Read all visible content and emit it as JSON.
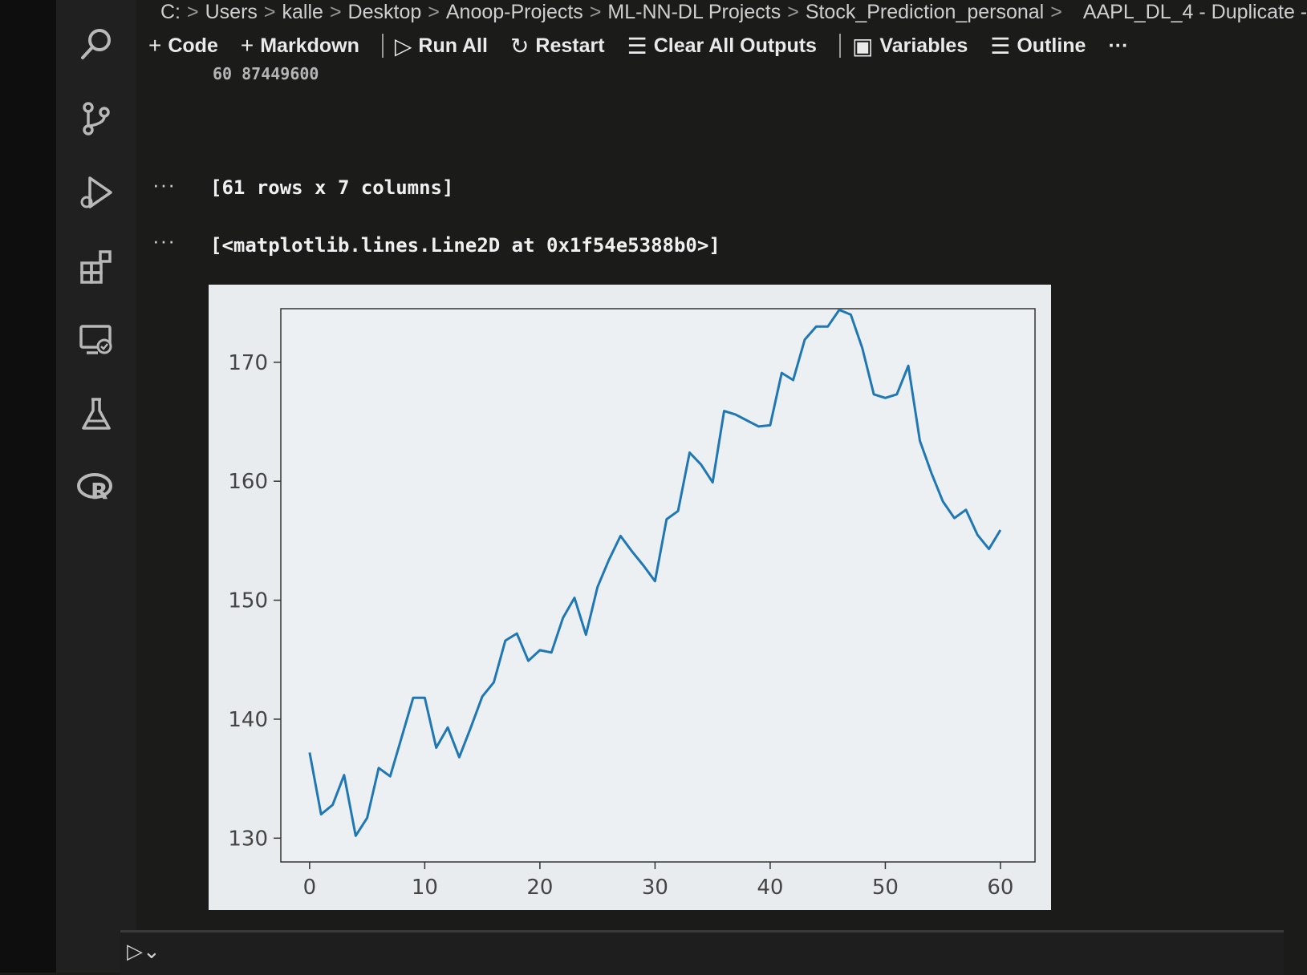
{
  "breadcrumb": {
    "items": [
      "C:",
      "Users",
      "kalle",
      "Desktop",
      "Anoop-Projects",
      "ML-NN-DL Projects",
      "Stock_Prediction_personal",
      "AAPL_DL_4 - Duplicate -"
    ],
    "separator": ">"
  },
  "toolbar": {
    "code": "Code",
    "markdown": "Markdown",
    "run_all": "Run All",
    "restart": "Restart",
    "clear_outputs": "Clear All Outputs",
    "variables": "Variables",
    "outline": "Outline",
    "more": "···"
  },
  "activity_bar": {
    "icons": [
      "search-icon",
      "source-control-icon",
      "run-debug-icon",
      "extensions-icon",
      "remote-explorer-icon",
      "testing-icon",
      "r-language-icon"
    ]
  },
  "cell_output": {
    "partial_row": "60    87449600",
    "rows_cols": "[61 rows x 7 columns]",
    "more_label": "···",
    "line_repr": "[<matplotlib.lines.Line2D at 0x1f54e5388b0>]"
  },
  "chart_data": {
    "type": "line",
    "title": "",
    "xlabel": "",
    "ylabel": "",
    "xlim": [
      -2.5,
      63
    ],
    "ylim": [
      128,
      174.5
    ],
    "xticks": [
      0,
      10,
      20,
      30,
      40,
      50,
      60
    ],
    "yticks": [
      130,
      140,
      150,
      160,
      170
    ],
    "grid": false,
    "line_color": "#1f77b4",
    "x": [
      0,
      1,
      2,
      3,
      4,
      5,
      6,
      7,
      8,
      9,
      10,
      11,
      12,
      13,
      14,
      15,
      16,
      17,
      18,
      19,
      20,
      21,
      22,
      23,
      24,
      25,
      26,
      27,
      28,
      29,
      30,
      31,
      32,
      33,
      34,
      35,
      36,
      37,
      38,
      39,
      40,
      41,
      42,
      43,
      44,
      45,
      46,
      47,
      48,
      49,
      50,
      51,
      52,
      53,
      54,
      55,
      56,
      57,
      58,
      59,
      60
    ],
    "series": [
      {
        "values": [
          137.2,
          132.0,
          132.8,
          135.3,
          130.2,
          131.7,
          135.9,
          135.2,
          138.5,
          141.8,
          141.8,
          137.6,
          139.3,
          136.8,
          139.3,
          141.9,
          143.1,
          146.6,
          147.2,
          144.9,
          145.8,
          145.6,
          148.5,
          150.2,
          147.1,
          151.1,
          153.4,
          155.4,
          154.1,
          152.9,
          151.6,
          156.8,
          157.5,
          162.4,
          161.4,
          159.9,
          165.9,
          165.6,
          165.1,
          164.6,
          164.7,
          169.1,
          168.5,
          171.9,
          173.0,
          173.0,
          174.4,
          174.0,
          171.2,
          167.3,
          167.0,
          167.3,
          169.7,
          163.4,
          160.7,
          158.3,
          156.9,
          157.6,
          155.5,
          154.3,
          155.9
        ]
      }
    ]
  }
}
